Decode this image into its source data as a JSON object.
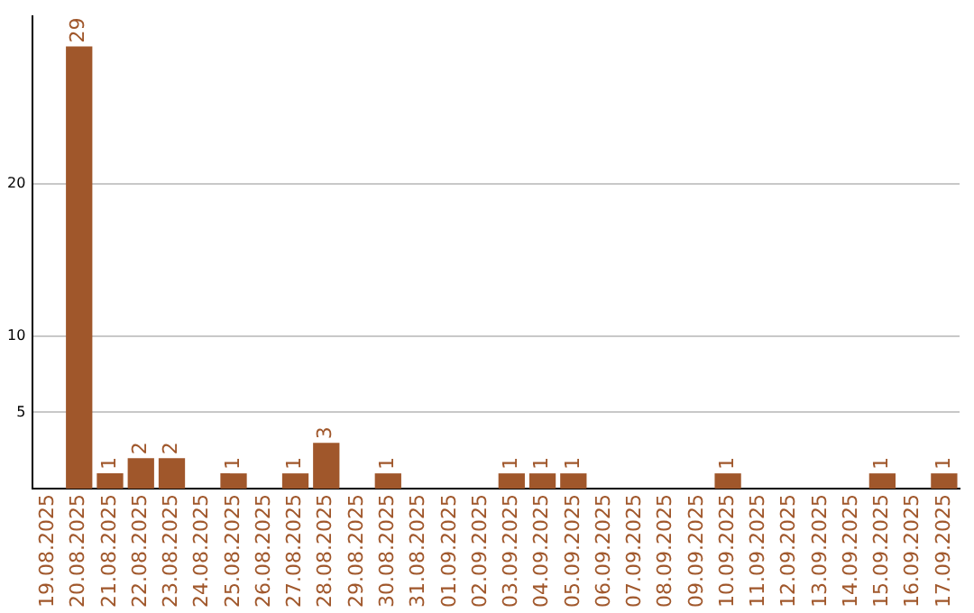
{
  "chart_data": {
    "type": "bar",
    "categories": [
      "19.08.2025",
      "20.08.2025",
      "21.08.2025",
      "22.08.2025",
      "23.08.2025",
      "24.08.2025",
      "25.08.2025",
      "26.08.2025",
      "27.08.2025",
      "28.08.2025",
      "29.08.2025",
      "30.08.2025",
      "31.08.2025",
      "01.09.2025",
      "02.09.2025",
      "03.09.2025",
      "04.09.2025",
      "05.09.2025",
      "06.09.2025",
      "07.09.2025",
      "08.09.2025",
      "09.09.2025",
      "10.09.2025",
      "11.09.2025",
      "12.09.2025",
      "13.09.2025",
      "14.09.2025",
      "15.09.2025",
      "16.09.2025",
      "17.09.2025"
    ],
    "values": [
      0,
      29,
      1,
      2,
      2,
      0,
      1,
      0,
      1,
      3,
      0,
      1,
      0,
      0,
      0,
      1,
      1,
      1,
      0,
      0,
      0,
      0,
      1,
      0,
      0,
      0,
      0,
      1,
      0,
      1
    ],
    "value_labels": [
      null,
      "29",
      "1",
      "2",
      "2",
      null,
      "1",
      null,
      "1",
      "3",
      null,
      "1",
      null,
      null,
      null,
      "1",
      "1",
      "1",
      null,
      null,
      null,
      null,
      "1",
      null,
      null,
      null,
      null,
      "1",
      null,
      "1"
    ],
    "color": "#a0572b",
    "ylim": [
      0,
      31
    ],
    "yticks": [
      5,
      10,
      20
    ],
    "grid": "y",
    "legend": false
  }
}
